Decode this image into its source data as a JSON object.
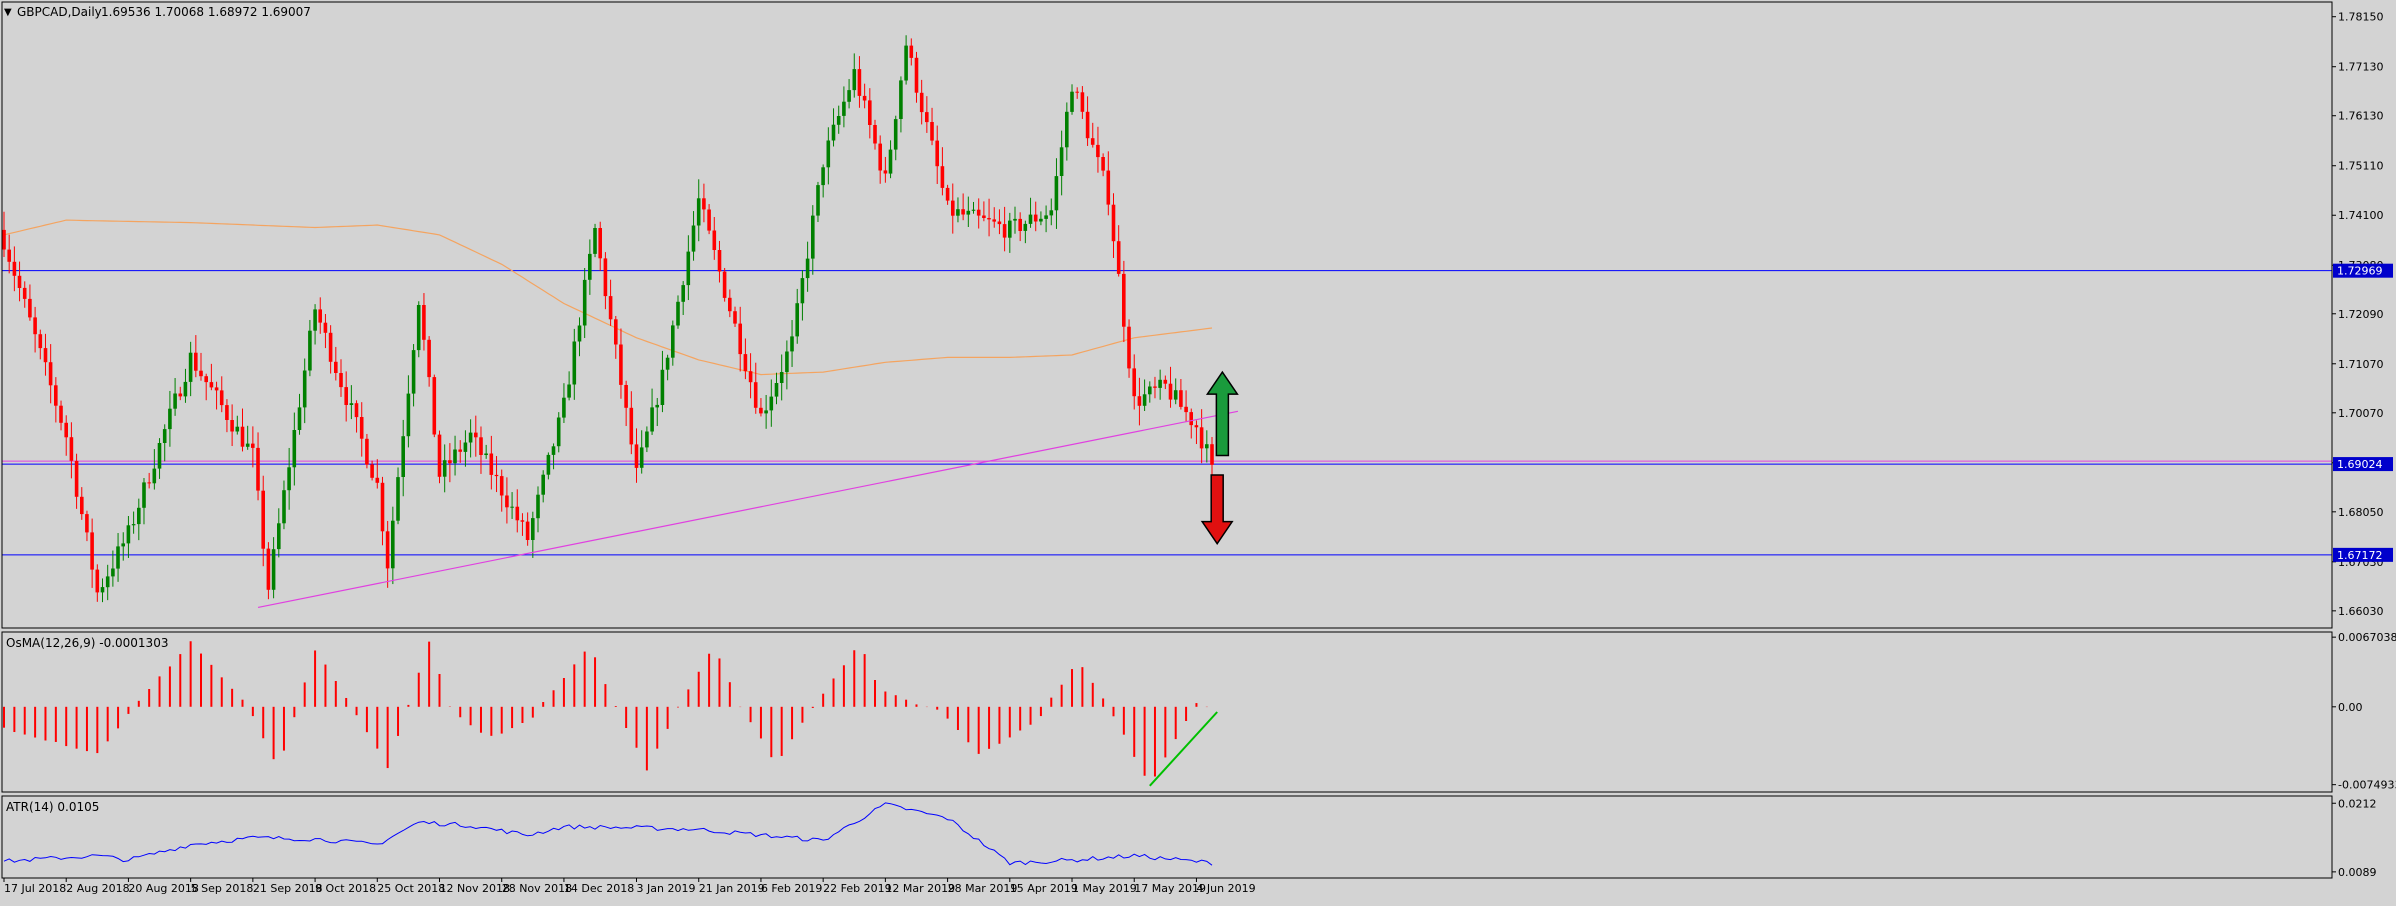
{
  "header": {
    "symbol_label": "GBPCAD,Daily",
    "ohlc": "1.69536 1.70068 1.68972 1.69007"
  },
  "colors": {
    "background": "#d3d3d3",
    "frame": "#000000",
    "bull_candle": "#008000",
    "bear_candle": "#ff0000",
    "ma_line": "#f4a460",
    "trendline": "#e040e0",
    "hline": "#0000ff",
    "price_tag_bg": "#0000cc",
    "osma_bar": "#ff0000",
    "atr_line": "#0000ff",
    "osma_trendline": "#00c000",
    "arrow_up": "#1a9b3c",
    "arrow_down": "#e01010"
  },
  "chart_data": [
    {
      "type": "candlestick",
      "pane": "main",
      "symbol": "GBPCAD",
      "timeframe": "Daily",
      "ylim": [
        1.6568,
        1.7845
      ],
      "y_ticks": [
        "1.78150",
        "1.77130",
        "1.76130",
        "1.75110",
        "1.74100",
        "1.73080",
        "1.72090",
        "1.71070",
        "1.70070",
        "1.69050",
        "1.68050",
        "1.67030",
        "1.66030"
      ],
      "x_ticks": [
        "17 Jul 2018",
        "2 Aug 2018",
        "20 Aug 2018",
        "5 Sep 2018",
        "21 Sep 2018",
        "9 Oct 2018",
        "25 Oct 2018",
        "12 Nov 2018",
        "28 Nov 2018",
        "14 Dec 2018",
        "3 Jan 2019",
        "21 Jan 2019",
        "6 Feb 2019",
        "22 Feb 2019",
        "12 Mar 2019",
        "28 Mar 2019",
        "15 Apr 2019",
        "1 May 2019",
        "17 May 2019",
        "4 Jun 2019"
      ],
      "key_closes": [
        {
          "date": "17 Jul 2018",
          "close": 1.736
        },
        {
          "date": "2 Aug 2018",
          "close": 1.696
        },
        {
          "date": "10 Aug 2018",
          "close": 1.664
        },
        {
          "date": "20 Aug 2018",
          "close": 1.676
        },
        {
          "date": "5 Sep 2018",
          "close": 1.712
        },
        {
          "date": "21 Sep 2018",
          "close": 1.692
        },
        {
          "date": "26 Sep 2018",
          "close": 1.665
        },
        {
          "date": "9 Oct 2018",
          "close": 1.722
        },
        {
          "date": "25 Oct 2018",
          "close": 1.686
        },
        {
          "date": "29 Oct 2018",
          "close": 1.67
        },
        {
          "date": "6 Nov 2018",
          "close": 1.724
        },
        {
          "date": "12 Nov 2018",
          "close": 1.688
        },
        {
          "date": "20 Nov 2018",
          "close": 1.696
        },
        {
          "date": "28 Nov 2018",
          "close": 1.685
        },
        {
          "date": "5 Dec 2018",
          "close": 1.675
        },
        {
          "date": "14 Dec 2018",
          "close": 1.702
        },
        {
          "date": "24 Dec 2018",
          "close": 1.738
        },
        {
          "date": "3 Jan 2019",
          "close": 1.688
        },
        {
          "date": "10 Jan 2019",
          "close": 1.708
        },
        {
          "date": "21 Jan 2019",
          "close": 1.744
        },
        {
          "date": "6 Feb 2019",
          "close": 1.7
        },
        {
          "date": "14 Feb 2019",
          "close": 1.715
        },
        {
          "date": "22 Feb 2019",
          "close": 1.752
        },
        {
          "date": "4 Mar 2019",
          "close": 1.77
        },
        {
          "date": "12 Mar 2019",
          "close": 1.748
        },
        {
          "date": "18 Mar 2019",
          "close": 1.776
        },
        {
          "date": "28 Mar 2019",
          "close": 1.742
        },
        {
          "date": "15 Apr 2019",
          "close": 1.738
        },
        {
          "date": "25 Apr 2019",
          "close": 1.742
        },
        {
          "date": "1 May 2019",
          "close": 1.768
        },
        {
          "date": "10 May 2019",
          "close": 1.745
        },
        {
          "date": "17 May 2019",
          "close": 1.703
        },
        {
          "date": "27 May 2019",
          "close": 1.706
        },
        {
          "date": "4 Jun 2019",
          "close": 1.698
        },
        {
          "date": "7 Jun 2019",
          "close": 1.6901
        }
      ],
      "moving_average": {
        "points": [
          {
            "date": "17 Jul 2018",
            "value": 1.737
          },
          {
            "date": "2 Aug 2018",
            "value": 1.74
          },
          {
            "date": "5 Sep 2018",
            "value": 1.7395
          },
          {
            "date": "9 Oct 2018",
            "value": 1.7385
          },
          {
            "date": "25 Oct 2018",
            "value": 1.739
          },
          {
            "date": "12 Nov 2018",
            "value": 1.737
          },
          {
            "date": "28 Nov 2018",
            "value": 1.731
          },
          {
            "date": "14 Dec 2018",
            "value": 1.723
          },
          {
            "date": "3 Jan 2019",
            "value": 1.716
          },
          {
            "date": "21 Jan 2019",
            "value": 1.7115
          },
          {
            "date": "6 Feb 2019",
            "value": 1.7085
          },
          {
            "date": "22 Feb 2019",
            "value": 1.709
          },
          {
            "date": "12 Mar 2019",
            "value": 1.711
          },
          {
            "date": "28 Mar 2019",
            "value": 1.712
          },
          {
            "date": "15 Apr 2019",
            "value": 1.712
          },
          {
            "date": "1 May 2019",
            "value": 1.7125
          },
          {
            "date": "17 May 2019",
            "value": 1.716
          },
          {
            "date": "7 Jun 2019",
            "value": 1.718
          }
        ]
      },
      "horizontal_lines": [
        {
          "price": 1.72969,
          "label": "1.72969"
        },
        {
          "price": 1.69024,
          "label": "1.69024"
        },
        {
          "price": 1.67172,
          "label": "1.67172"
        }
      ],
      "trendline": {
        "start": {
          "date": "24 Sep 2018",
          "price": 1.661
        },
        "end": {
          "date": "14 Jun 2019",
          "price": 1.701
        }
      },
      "annotations": [
        {
          "shape": "arrow-up",
          "date": "11 Jun 2019",
          "from": 1.692,
          "to": 1.709
        },
        {
          "shape": "arrow-down",
          "date": "10 Jun 2019",
          "from": 1.688,
          "to": 1.674
        }
      ]
    },
    {
      "type": "bar",
      "pane": "osma",
      "indicator_label": "OsMA(12,26,9) -0.0001303",
      "ylim": [
        -0.0082,
        0.0072
      ],
      "y_ticks": [
        "0.0067038",
        "0.00",
        "-0.0074933"
      ],
      "key_values": [
        {
          "date": "17 Jul 2018",
          "value": -0.002
        },
        {
          "date": "10 Aug 2018",
          "value": -0.0045
        },
        {
          "date": "22 Aug 2018",
          "value": 0.0005
        },
        {
          "date": "5 Sep 2018",
          "value": 0.0063
        },
        {
          "date": "20 Sep 2018",
          "value": 0.0
        },
        {
          "date": "28 Sep 2018",
          "value": -0.006
        },
        {
          "date": "9 Oct 2018",
          "value": 0.0055
        },
        {
          "date": "18 Oct 2018",
          "value": 0.0
        },
        {
          "date": "29 Oct 2018",
          "value": -0.0058
        },
        {
          "date": "8 Nov 2018",
          "value": 0.0062
        },
        {
          "date": "14 Nov 2018",
          "value": 0.0
        },
        {
          "date": "23 Nov 2018",
          "value": -0.003
        },
        {
          "date": "5 Dec 2018",
          "value": -0.0015
        },
        {
          "date": "21 Dec 2018",
          "value": 0.0058
        },
        {
          "date": "28 Dec 2018",
          "value": 0.0
        },
        {
          "date": "7 Jan 2019",
          "value": -0.006
        },
        {
          "date": "15 Jan 2019",
          "value": 0.0
        },
        {
          "date": "24 Jan 2019",
          "value": 0.006
        },
        {
          "date": "31 Jan 2019",
          "value": 0.0
        },
        {
          "date": "11 Feb 2019",
          "value": -0.0055
        },
        {
          "date": "20 Feb 2019",
          "value": 0.0
        },
        {
          "date": "5 Mar 2019",
          "value": 0.0062
        },
        {
          "date": "11 Mar 2019",
          "value": 0.0015
        },
        {
          "date": "27 Mar 2019",
          "value": -0.0005
        },
        {
          "date": "5 Apr 2019",
          "value": -0.0045
        },
        {
          "date": "20 Apr 2019",
          "value": -0.0015
        },
        {
          "date": "2 May 2019",
          "value": 0.0045
        },
        {
          "date": "10 May 2019",
          "value": 0.0
        },
        {
          "date": "22 May 2019",
          "value": -0.0075
        },
        {
          "date": "4 Jun 2019",
          "value": 0.0005
        },
        {
          "date": "7 Jun 2019",
          "value": -0.0001303
        }
      ],
      "trendline": {
        "start": {
          "date": "22 May 2019",
          "value": -0.0076
        },
        "end": {
          "date": "10 Jun 2019",
          "value": -0.0005
        }
      }
    },
    {
      "type": "line",
      "pane": "atr",
      "indicator_label": "ATR(14) 0.0105",
      "ylim": [
        0.0078,
        0.0225
      ],
      "y_ticks": [
        "0.0212",
        "0.0089"
      ],
      "points": [
        {
          "date": "17 Jul 2018",
          "value": 0.0108
        },
        {
          "date": "10 Aug 2018",
          "value": 0.0118
        },
        {
          "date": "20 Aug 2018",
          "value": 0.011
        },
        {
          "date": "5 Sep 2018",
          "value": 0.0138
        },
        {
          "date": "21 Sep 2018",
          "value": 0.015
        },
        {
          "date": "9 Oct 2018",
          "value": 0.0148
        },
        {
          "date": "25 Oct 2018",
          "value": 0.0138
        },
        {
          "date": "6 Nov 2018",
          "value": 0.0178
        },
        {
          "date": "20 Nov 2018",
          "value": 0.0172
        },
        {
          "date": "5 Dec 2018",
          "value": 0.0155
        },
        {
          "date": "14 Dec 2018",
          "value": 0.017
        },
        {
          "date": "3 Jan 2019",
          "value": 0.0168
        },
        {
          "date": "21 Jan 2019",
          "value": 0.0165
        },
        {
          "date": "6 Feb 2019",
          "value": 0.0155
        },
        {
          "date": "22 Feb 2019",
          "value": 0.0145
        },
        {
          "date": "12 Mar 2019",
          "value": 0.021
        },
        {
          "date": "28 Mar 2019",
          "value": 0.0185
        },
        {
          "date": "15 Apr 2019",
          "value": 0.0105
        },
        {
          "date": "1 May 2019",
          "value": 0.011
        },
        {
          "date": "17 May 2019",
          "value": 0.0118
        },
        {
          "date": "7 Jun 2019",
          "value": 0.0105
        }
      ]
    }
  ]
}
